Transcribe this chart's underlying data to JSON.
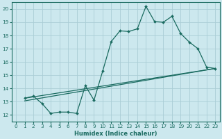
{
  "xlabel": "Humidex (Indice chaleur)",
  "bg_color": "#cce8ee",
  "grid_color": "#aacdd5",
  "line_color": "#1a6b60",
  "xlim": [
    -0.5,
    23.5
  ],
  "ylim": [
    11.5,
    20.5
  ],
  "xticks": [
    0,
    1,
    2,
    3,
    4,
    5,
    6,
    7,
    8,
    9,
    10,
    11,
    12,
    13,
    14,
    15,
    16,
    17,
    18,
    19,
    20,
    21,
    22,
    23
  ],
  "yticks": [
    12,
    13,
    14,
    15,
    16,
    17,
    18,
    19,
    20
  ],
  "line1_x": [
    1,
    2,
    3,
    4,
    5,
    6,
    7,
    8,
    9,
    10,
    11,
    12,
    13,
    14,
    15,
    16,
    17,
    18,
    19,
    20,
    21,
    22,
    23
  ],
  "line1_y": [
    13.25,
    13.4,
    12.85,
    12.1,
    12.2,
    12.2,
    12.1,
    14.2,
    13.1,
    15.3,
    17.55,
    18.35,
    18.3,
    18.5,
    20.2,
    19.05,
    19.0,
    19.45,
    18.15,
    17.5,
    17.0,
    15.6,
    15.5
  ],
  "line2_x": [
    1,
    23
  ],
  "line2_y": [
    13.25,
    15.5
  ],
  "line3_x": [
    1,
    23
  ],
  "line3_y": [
    13.05,
    15.5
  ],
  "xlabel_fontsize": 6.0,
  "tick_fontsize": 5.2
}
